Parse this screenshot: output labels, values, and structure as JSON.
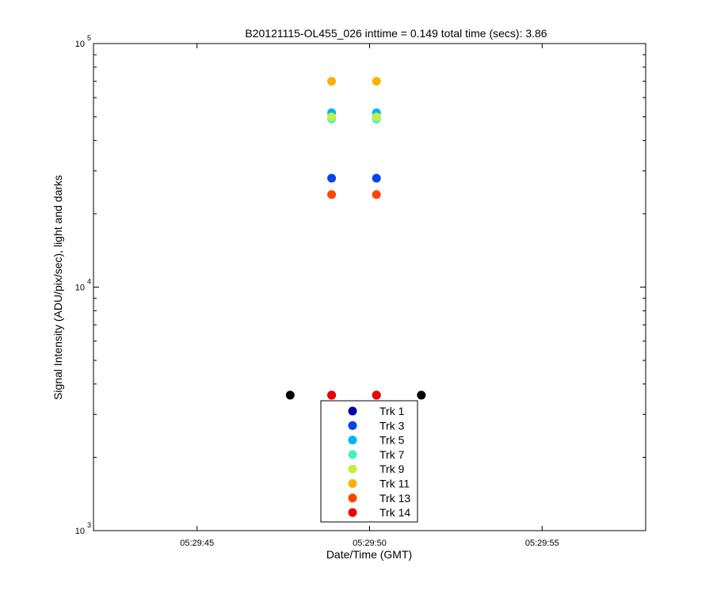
{
  "chart_data": {
    "type": "scatter",
    "title": "B20121115-OL455_026 inttime = 0.149 total time (secs): 3.86",
    "xlabel": "Date/Time (GMT)",
    "ylabel": "Signal Intensity (ADU/pix/sec), light and darks",
    "y_scale": "log",
    "ylim": [
      1000,
      100000
    ],
    "xlim": [
      "05:29:42",
      "05:29:58"
    ],
    "x_ticks": [
      "05:29:45",
      "05:29:50",
      "05:29:55"
    ],
    "y_ticks": [
      {
        "base": "10",
        "exp": "3",
        "value": 1000
      },
      {
        "base": "10",
        "exp": "4",
        "value": 10000
      },
      {
        "base": "10",
        "exp": "5",
        "value": 100000
      }
    ],
    "grid": false,
    "legend_position": "bottom-center",
    "series": [
      {
        "name": "Trk 1",
        "color": "#0000aa",
        "points": [
          {
            "x": "05:29:48.9",
            "y": 3600
          },
          {
            "x": "05:29:50.2",
            "y": 3600
          }
        ]
      },
      {
        "name": "Trk 3",
        "color": "#0044ee",
        "points": [
          {
            "x": "05:29:48.9",
            "y": 28000
          },
          {
            "x": "05:29:50.2",
            "y": 28000
          }
        ]
      },
      {
        "name": "Trk 5",
        "color": "#00b4f0",
        "points": [
          {
            "x": "05:29:48.9",
            "y": 52000
          },
          {
            "x": "05:29:50.2",
            "y": 52000
          }
        ]
      },
      {
        "name": "Trk 7",
        "color": "#44f0c0",
        "points": [
          {
            "x": "05:29:48.9",
            "y": 49000
          },
          {
            "x": "05:29:50.2",
            "y": 49000
          }
        ]
      },
      {
        "name": "Trk 9",
        "color": "#c0f040",
        "points": [
          {
            "x": "05:29:48.9",
            "y": 50000
          },
          {
            "x": "05:29:50.2",
            "y": 50000
          }
        ]
      },
      {
        "name": "Trk 11",
        "color": "#ffb000",
        "points": [
          {
            "x": "05:29:48.9",
            "y": 70000
          },
          {
            "x": "05:29:50.2",
            "y": 70000
          }
        ]
      },
      {
        "name": "Trk 13",
        "color": "#ff4400",
        "points": [
          {
            "x": "05:29:48.9",
            "y": 24000
          },
          {
            "x": "05:29:50.2",
            "y": 24000
          }
        ]
      },
      {
        "name": "Trk 14",
        "color": "#ee0000",
        "points": [
          {
            "x": "05:29:48.9",
            "y": 3600
          },
          {
            "x": "05:29:50.2",
            "y": 3600
          }
        ]
      }
    ],
    "darks": {
      "color": "#000000",
      "points": [
        {
          "x": "05:29:47.7",
          "y": 3600
        },
        {
          "x": "05:29:51.5",
          "y": 3600
        }
      ]
    }
  }
}
